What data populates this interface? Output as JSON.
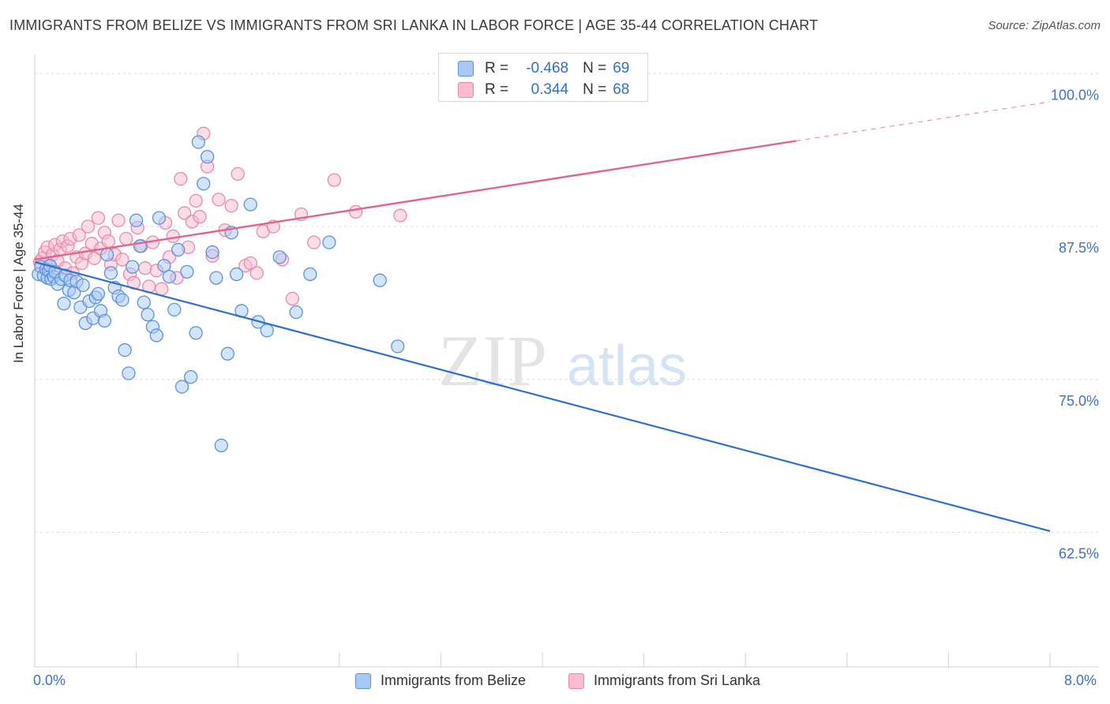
{
  "title": "IMMIGRANTS FROM BELIZE VS IMMIGRANTS FROM SRI LANKA IN LABOR FORCE | AGE 35-44 CORRELATION CHART",
  "source": "Source: ZipAtlas.com",
  "watermark": {
    "zip": "ZIP",
    "atlas": "atlas"
  },
  "colors": {
    "belize_fill": "#a8c8f4",
    "belize_stroke": "#5b93dc",
    "belize_line": "#2f6fcf",
    "srilanka_fill": "#f8bcd0",
    "srilanka_stroke": "#e98aaa",
    "srilanka_line": "#e0648e",
    "grid": "#dcdcdc",
    "axis_label": "#3d72c8"
  },
  "legend_stats": {
    "rows": [
      {
        "r_label": "R =",
        "r_value": "-0.468",
        "n_label": "N =",
        "n_value": "69"
      },
      {
        "r_label": "R =",
        "r_value": "0.344",
        "n_label": "N =",
        "n_value": "68"
      }
    ]
  },
  "bottom_legend": {
    "belize": "Immigrants from Belize",
    "srilanka": "Immigrants from Sri Lanka"
  },
  "x_axis_labels": {
    "min": "0.0%",
    "max": "8.0%"
  },
  "chart_data": {
    "type": "scatter",
    "title": "IMMIGRANTS FROM BELIZE VS IMMIGRANTS FROM SRI LANKA IN LABOR FORCE | AGE 35-44 CORRELATION CHART",
    "xlabel": "",
    "ylabel": "In Labor Force | Age 35-44",
    "xlim": [
      0,
      8
    ],
    "ylim": [
      51.5,
      101.5
    ],
    "y_ticks": [
      100.0,
      87.5,
      75.0,
      62.5
    ],
    "y_tick_labels": [
      "100.0%",
      "87.5%",
      "75.0%",
      "62.5%"
    ],
    "series": [
      {
        "name": "Immigrants from Belize",
        "r": -0.468,
        "n": 69,
        "trend": {
          "x0": 0.0,
          "y0": 84.6,
          "x1": 8.0,
          "y1": 62.6
        },
        "points": [
          [
            0.03,
            83.6
          ],
          [
            0.05,
            84.2
          ],
          [
            0.07,
            83.5
          ],
          [
            0.09,
            84.0
          ],
          [
            0.1,
            83.3
          ],
          [
            0.11,
            83.9
          ],
          [
            0.12,
            84.3
          ],
          [
            0.13,
            83.2
          ],
          [
            0.15,
            83.4
          ],
          [
            0.16,
            83.8
          ],
          [
            0.18,
            82.8
          ],
          [
            0.21,
            83.2
          ],
          [
            0.23,
            81.2
          ],
          [
            0.24,
            83.5
          ],
          [
            0.27,
            82.3
          ],
          [
            0.28,
            83.1
          ],
          [
            0.31,
            82.1
          ],
          [
            0.33,
            83.0
          ],
          [
            0.36,
            80.9
          ],
          [
            0.38,
            82.7
          ],
          [
            0.4,
            79.6
          ],
          [
            0.43,
            81.4
          ],
          [
            0.46,
            80.0
          ],
          [
            0.48,
            81.7
          ],
          [
            0.5,
            82.0
          ],
          [
            0.52,
            80.6
          ],
          [
            0.55,
            79.8
          ],
          [
            0.57,
            85.2
          ],
          [
            0.6,
            83.7
          ],
          [
            0.63,
            82.5
          ],
          [
            0.66,
            81.8
          ],
          [
            0.69,
            81.5
          ],
          [
            0.71,
            77.4
          ],
          [
            0.74,
            75.5
          ],
          [
            0.77,
            84.2
          ],
          [
            0.8,
            88.0
          ],
          [
            0.83,
            85.9
          ],
          [
            0.86,
            81.3
          ],
          [
            0.89,
            80.3
          ],
          [
            0.93,
            79.3
          ],
          [
            0.96,
            78.6
          ],
          [
            0.98,
            88.2
          ],
          [
            1.02,
            84.3
          ],
          [
            1.06,
            83.4
          ],
          [
            1.1,
            80.7
          ],
          [
            1.13,
            85.6
          ],
          [
            1.16,
            74.4
          ],
          [
            1.2,
            83.8
          ],
          [
            1.23,
            75.2
          ],
          [
            1.27,
            78.8
          ],
          [
            1.29,
            94.4
          ],
          [
            1.33,
            91.0
          ],
          [
            1.36,
            93.2
          ],
          [
            1.4,
            85.4
          ],
          [
            1.43,
            83.3
          ],
          [
            1.47,
            69.6
          ],
          [
            1.52,
            77.1
          ],
          [
            1.55,
            87.0
          ],
          [
            1.59,
            83.6
          ],
          [
            1.63,
            80.6
          ],
          [
            1.7,
            89.3
          ],
          [
            1.76,
            79.7
          ],
          [
            1.83,
            79.0
          ],
          [
            1.93,
            85.0
          ],
          [
            2.06,
            80.5
          ],
          [
            2.17,
            83.6
          ],
          [
            2.32,
            86.2
          ],
          [
            2.72,
            83.1
          ],
          [
            2.86,
            77.7
          ]
        ]
      },
      {
        "name": "Immigrants from Sri Lanka",
        "r": 0.344,
        "n": 68,
        "trend": {
          "x0": 0.0,
          "y0": 84.8,
          "x1": 6.0,
          "y1": 94.5,
          "dash_to": {
            "x": 8.0,
            "y": 97.7
          }
        },
        "points": [
          [
            0.04,
            84.6
          ],
          [
            0.06,
            84.9
          ],
          [
            0.08,
            85.4
          ],
          [
            0.1,
            85.8
          ],
          [
            0.12,
            84.3
          ],
          [
            0.14,
            85.2
          ],
          [
            0.16,
            86.0
          ],
          [
            0.18,
            84.7
          ],
          [
            0.2,
            85.6
          ],
          [
            0.22,
            86.3
          ],
          [
            0.24,
            84.1
          ],
          [
            0.26,
            85.9
          ],
          [
            0.28,
            86.5
          ],
          [
            0.3,
            83.7
          ],
          [
            0.33,
            85.0
          ],
          [
            0.35,
            86.8
          ],
          [
            0.37,
            84.5
          ],
          [
            0.4,
            85.3
          ],
          [
            0.42,
            87.5
          ],
          [
            0.45,
            86.1
          ],
          [
            0.47,
            84.9
          ],
          [
            0.5,
            88.2
          ],
          [
            0.52,
            85.7
          ],
          [
            0.55,
            87.0
          ],
          [
            0.58,
            86.3
          ],
          [
            0.6,
            84.4
          ],
          [
            0.63,
            85.2
          ],
          [
            0.66,
            88.0
          ],
          [
            0.69,
            84.8
          ],
          [
            0.72,
            86.5
          ],
          [
            0.75,
            83.6
          ],
          [
            0.78,
            82.9
          ],
          [
            0.81,
            87.4
          ],
          [
            0.84,
            85.9
          ],
          [
            0.87,
            84.1
          ],
          [
            0.9,
            82.6
          ],
          [
            0.93,
            86.2
          ],
          [
            0.96,
            83.9
          ],
          [
            1.0,
            82.4
          ],
          [
            1.03,
            87.8
          ],
          [
            1.06,
            85.0
          ],
          [
            1.09,
            86.7
          ],
          [
            1.12,
            83.3
          ],
          [
            1.15,
            91.4
          ],
          [
            1.18,
            88.6
          ],
          [
            1.21,
            85.8
          ],
          [
            1.24,
            87.9
          ],
          [
            1.27,
            89.6
          ],
          [
            1.3,
            88.3
          ],
          [
            1.33,
            95.1
          ],
          [
            1.36,
            92.4
          ],
          [
            1.4,
            85.1
          ],
          [
            1.45,
            89.7
          ],
          [
            1.5,
            87.2
          ],
          [
            1.55,
            89.2
          ],
          [
            1.6,
            91.8
          ],
          [
            1.66,
            84.3
          ],
          [
            1.7,
            84.5
          ],
          [
            1.75,
            83.7
          ],
          [
            1.8,
            87.1
          ],
          [
            1.88,
            87.5
          ],
          [
            1.95,
            84.8
          ],
          [
            2.03,
            81.6
          ],
          [
            2.1,
            88.5
          ],
          [
            2.2,
            86.2
          ],
          [
            2.36,
            91.3
          ],
          [
            2.53,
            88.7
          ],
          [
            2.88,
            88.4
          ]
        ]
      }
    ]
  }
}
